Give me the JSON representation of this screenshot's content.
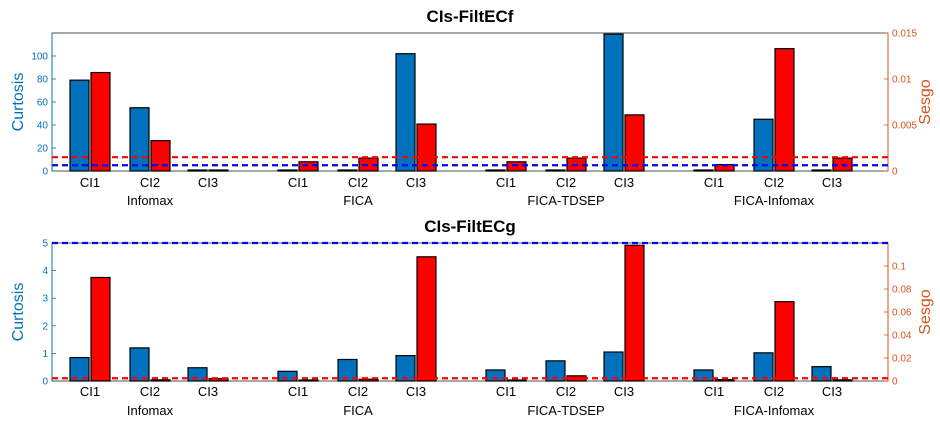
{
  "colors": {
    "left": "#0072BD",
    "right": "#D95319",
    "bar_left": "#0072BD",
    "bar_right": "#FF0000",
    "ref_left": "#0000FF",
    "ref_right": "#FF0000"
  },
  "chart_data": [
    {
      "type": "bar",
      "title": "CIs-FiltECf",
      "ylabel": "Curtosis",
      "ylabel_right": "Sesgo",
      "ylim": [
        0,
        120
      ],
      "ylim_right": [
        0,
        0.015
      ],
      "yticks": [
        "0",
        "20",
        "40",
        "60",
        "80",
        "100"
      ],
      "yticks_right": [
        "0",
        "0.005",
        "0.01",
        "0.015"
      ],
      "groups": [
        "Infomax",
        "FICA",
        "FICA-TDSEP",
        "FICA-Infomax"
      ],
      "categories": [
        "CI1",
        "CI2",
        "CI3"
      ],
      "series": [
        {
          "name": "Curtosis",
          "axis": "left",
          "values": [
            [
              79,
              55,
              0.5
            ],
            [
              0.5,
              0.5,
              102
            ],
            [
              0.5,
              0.5,
              119
            ],
            [
              0.5,
              45,
              0.5
            ]
          ]
        },
        {
          "name": "Sesgo",
          "axis": "right",
          "values": [
            [
              0.0107,
              0.0033,
              0.0001
            ],
            [
              0.001,
              0.0014,
              0.0051
            ],
            [
              0.001,
              0.0014,
              0.0061
            ],
            [
              0.0007,
              0.0133,
              0.0014
            ]
          ]
        }
      ],
      "reference_lines": [
        {
          "axis": "left",
          "value": 12
        },
        {
          "axis": "left",
          "value": 5
        }
      ]
    },
    {
      "type": "bar",
      "title": "CIs-FiltECg",
      "ylabel": "Curtosis",
      "ylabel_right": "Sesgo",
      "ylim": [
        0,
        5
      ],
      "ylim_right": [
        0,
        0.12
      ],
      "yticks": [
        "0",
        "1",
        "2",
        "3",
        "4",
        "5"
      ],
      "yticks_right": [
        "0",
        "0.02",
        "0.04",
        "0.06",
        "0.08",
        "0.1"
      ],
      "groups": [
        "Infomax",
        "FICA",
        "FICA-TDSEP",
        "FICA-Infomax"
      ],
      "categories": [
        "CI1",
        "CI2",
        "CI3"
      ],
      "series": [
        {
          "name": "Curtosis",
          "axis": "left",
          "values": [
            [
              0.85,
              1.2,
              0.48
            ],
            [
              0.35,
              0.78,
              0.92
            ],
            [
              0.4,
              0.73,
              1.05
            ],
            [
              0.4,
              1.02,
              0.52
            ]
          ]
        },
        {
          "name": "Sesgo",
          "axis": "right",
          "values": [
            [
              0.09,
              0.001,
              0.002
            ],
            [
              0.0008,
              0.0015,
              0.108
            ],
            [
              0.0008,
              0.0045,
              0.118
            ],
            [
              0.0012,
              0.069,
              0.001
            ]
          ]
        }
      ],
      "reference_lines": [
        {
          "axis": "left",
          "value": 5
        },
        {
          "axis": "left",
          "value": 0.1
        }
      ]
    }
  ]
}
